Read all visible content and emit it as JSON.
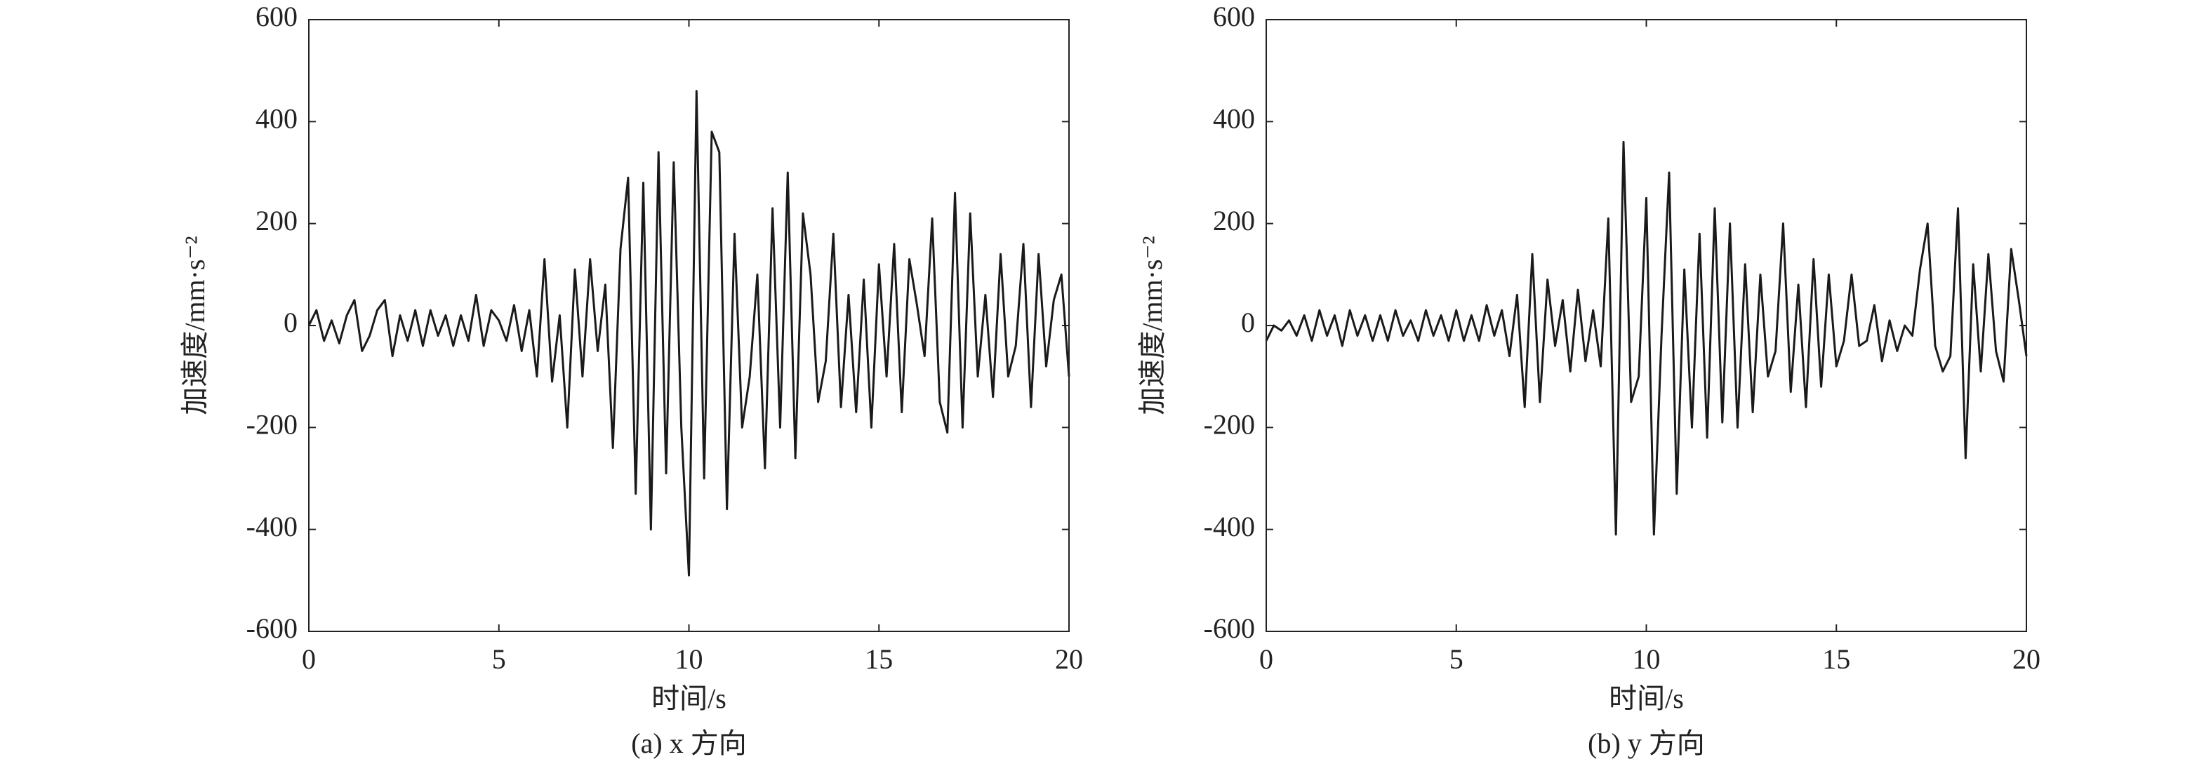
{
  "chart_data": [
    {
      "type": "line",
      "caption": "(a) x 方向",
      "xlabel": "时间/s",
      "ylabel": "加速度/mm·s⁻²",
      "x": [
        0,
        0.2,
        0.4,
        0.6,
        0.8,
        1,
        1.2,
        1.4,
        1.6,
        1.8,
        2,
        2.2,
        2.4,
        2.6,
        2.8,
        3,
        3.2,
        3.4,
        3.6,
        3.8,
        4,
        4.2,
        4.4,
        4.6,
        4.8,
        5,
        5.2,
        5.4,
        5.6,
        5.8,
        6,
        6.2,
        6.4,
        6.6,
        6.8,
        7,
        7.2,
        7.4,
        7.6,
        7.8,
        8,
        8.2,
        8.4,
        8.6,
        8.8,
        9,
        9.2,
        9.4,
        9.6,
        9.8,
        10,
        10.2,
        10.4,
        10.6,
        10.8,
        11,
        11.2,
        11.4,
        11.6,
        11.8,
        12,
        12.2,
        12.4,
        12.6,
        12.8,
        13,
        13.2,
        13.4,
        13.6,
        13.8,
        14,
        14.2,
        14.4,
        14.6,
        14.8,
        15,
        15.2,
        15.4,
        15.6,
        15.8,
        16,
        16.2,
        16.4,
        16.6,
        16.8,
        17,
        17.2,
        17.4,
        17.6,
        17.8,
        18,
        18.2,
        18.4,
        18.6,
        18.8,
        19,
        19.2,
        19.4,
        19.6,
        19.8,
        20
      ],
      "series": [
        {
          "color": "#1a1a1a",
          "values": [
            0,
            30,
            -30,
            10,
            -35,
            20,
            50,
            -50,
            -20,
            30,
            50,
            -60,
            20,
            -30,
            30,
            -40,
            30,
            -20,
            20,
            -40,
            20,
            -30,
            60,
            -40,
            30,
            10,
            -30,
            40,
            -50,
            30,
            -100,
            130,
            -110,
            20,
            -200,
            110,
            -100,
            130,
            -50,
            80,
            -240,
            150,
            290,
            -330,
            280,
            -400,
            340,
            -290,
            320,
            -200,
            -490,
            460,
            -300,
            380,
            340,
            -360,
            180,
            -200,
            -100,
            100,
            -280,
            230,
            -200,
            300,
            -260,
            220,
            100,
            -150,
            -70,
            180,
            -160,
            60,
            -170,
            90,
            -200,
            120,
            -100,
            160,
            -170,
            130,
            40,
            -60,
            210,
            -150,
            -210,
            260,
            -200,
            220,
            -100,
            60,
            -140,
            140,
            -100,
            -40,
            160,
            -160,
            140,
            -80,
            50,
            100,
            -100
          ]
        }
      ],
      "xlim": [
        0,
        20
      ],
      "ylim": [
        -600,
        600
      ],
      "xticks": [
        0,
        5,
        10,
        15,
        20
      ],
      "yticks": [
        -600,
        -400,
        -200,
        0,
        200,
        400,
        600
      ]
    },
    {
      "type": "line",
      "caption": "(b) y 方向",
      "xlabel": "时间/s",
      "ylabel": "加速度/mm·s⁻²",
      "x": [
        0,
        0.2,
        0.4,
        0.6,
        0.8,
        1,
        1.2,
        1.4,
        1.6,
        1.8,
        2,
        2.2,
        2.4,
        2.6,
        2.8,
        3,
        3.2,
        3.4,
        3.6,
        3.8,
        4,
        4.2,
        4.4,
        4.6,
        4.8,
        5,
        5.2,
        5.4,
        5.6,
        5.8,
        6,
        6.2,
        6.4,
        6.6,
        6.8,
        7,
        7.2,
        7.4,
        7.6,
        7.8,
        8,
        8.2,
        8.4,
        8.6,
        8.8,
        9,
        9.2,
        9.4,
        9.6,
        9.8,
        10,
        10.2,
        10.4,
        10.6,
        10.8,
        11,
        11.2,
        11.4,
        11.6,
        11.8,
        12,
        12.2,
        12.4,
        12.6,
        12.8,
        13,
        13.2,
        13.4,
        13.6,
        13.8,
        14,
        14.2,
        14.4,
        14.6,
        14.8,
        15,
        15.2,
        15.4,
        15.6,
        15.8,
        16,
        16.2,
        16.4,
        16.6,
        16.8,
        17,
        17.2,
        17.4,
        17.6,
        17.8,
        18,
        18.2,
        18.4,
        18.6,
        18.8,
        19,
        19.2,
        19.4,
        19.6,
        19.8,
        20
      ],
      "series": [
        {
          "color": "#1a1a1a",
          "values": [
            -30,
            0,
            -10,
            10,
            -20,
            20,
            -30,
            30,
            -20,
            20,
            -40,
            30,
            -20,
            20,
            -30,
            20,
            -30,
            30,
            -20,
            10,
            -30,
            30,
            -20,
            20,
            -30,
            30,
            -30,
            20,
            -30,
            40,
            -20,
            30,
            -60,
            60,
            -160,
            140,
            -150,
            90,
            -40,
            50,
            -90,
            70,
            -70,
            30,
            -80,
            210,
            -410,
            360,
            -150,
            -100,
            250,
            -410,
            -20,
            300,
            -330,
            110,
            -200,
            180,
            -220,
            230,
            -190,
            200,
            -200,
            120,
            -170,
            100,
            -100,
            -50,
            200,
            -130,
            80,
            -160,
            130,
            -120,
            100,
            -80,
            -30,
            100,
            -40,
            -30,
            40,
            -70,
            10,
            -50,
            0,
            -20,
            110,
            200,
            -40,
            -90,
            -60,
            230,
            -260,
            120,
            -90,
            140,
            -50,
            -110,
            150,
            50,
            -60
          ]
        }
      ],
      "xlim": [
        0,
        20
      ],
      "ylim": [
        -600,
        600
      ],
      "xticks": [
        0,
        5,
        10,
        15,
        20
      ],
      "yticks": [
        -600,
        -400,
        -200,
        0,
        200,
        400,
        600
      ]
    }
  ]
}
